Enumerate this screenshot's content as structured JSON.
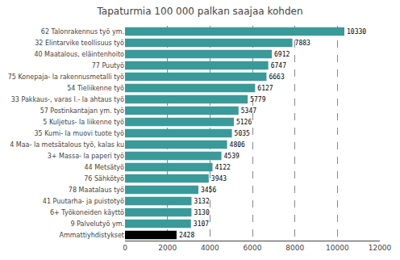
{
  "chart_data": {
    "type": "bar",
    "orientation": "horizontal",
    "title": "Tapaturmia 100 000 palkan saajaa kohden",
    "categories": [
      "Ammattiyhdistykset",
      "9 Palvelutyö ym.",
      "6+ Työkoneiden käyttö",
      "41 Puutarha- ja puistotyö",
      "78 Maatalaus työ",
      "76 Sähkötyö",
      "44 Metsätyö",
      "3+ Massa- la paperi työ",
      "4 Maa- la metsätalous työ, kalas ku",
      "35 Kumi- la muovi tuote työ",
      "5 Kuljetus- la liikenne työ",
      "57 Postinkantajan ym. työ",
      "33 Pakkaus-, varas l.- la ahtaus työ",
      "54 Tieliikenne työ",
      "75 Konepaja- la rakennusmetalli työ",
      "77 Puutyö",
      "40 Maatalous, eläintenhoito",
      "32 Elintarvike teollisuus työ",
      "62 Talonrakennus työ ym."
    ],
    "values": [
      2428,
      3107,
      3130,
      3132,
      3456,
      3943,
      4122,
      4539,
      4806,
      5035,
      5126,
      5347,
      5779,
      6127,
      6663,
      6747,
      6912,
      7883,
      10330
    ],
    "colors": [
      "#000000",
      "#3a9a9a",
      "#3a9a9a",
      "#3a9a9a",
      "#3a9a9a",
      "#3a9a9a",
      "#3a9a9a",
      "#3a9a9a",
      "#3a9a9a",
      "#3a9a9a",
      "#3a9a9a",
      "#3a9a9a",
      "#3a9a9a",
      "#3a9a9a",
      "#3a9a9a",
      "#3a9a9a",
      "#3a9a9a",
      "#3a9a9a",
      "#3a9a9a"
    ],
    "xlim": [
      0,
      12000
    ],
    "xticks": [
      0,
      2000,
      4000,
      6000,
      8000,
      10000,
      12000
    ],
    "grid": true,
    "data_labels": true
  }
}
